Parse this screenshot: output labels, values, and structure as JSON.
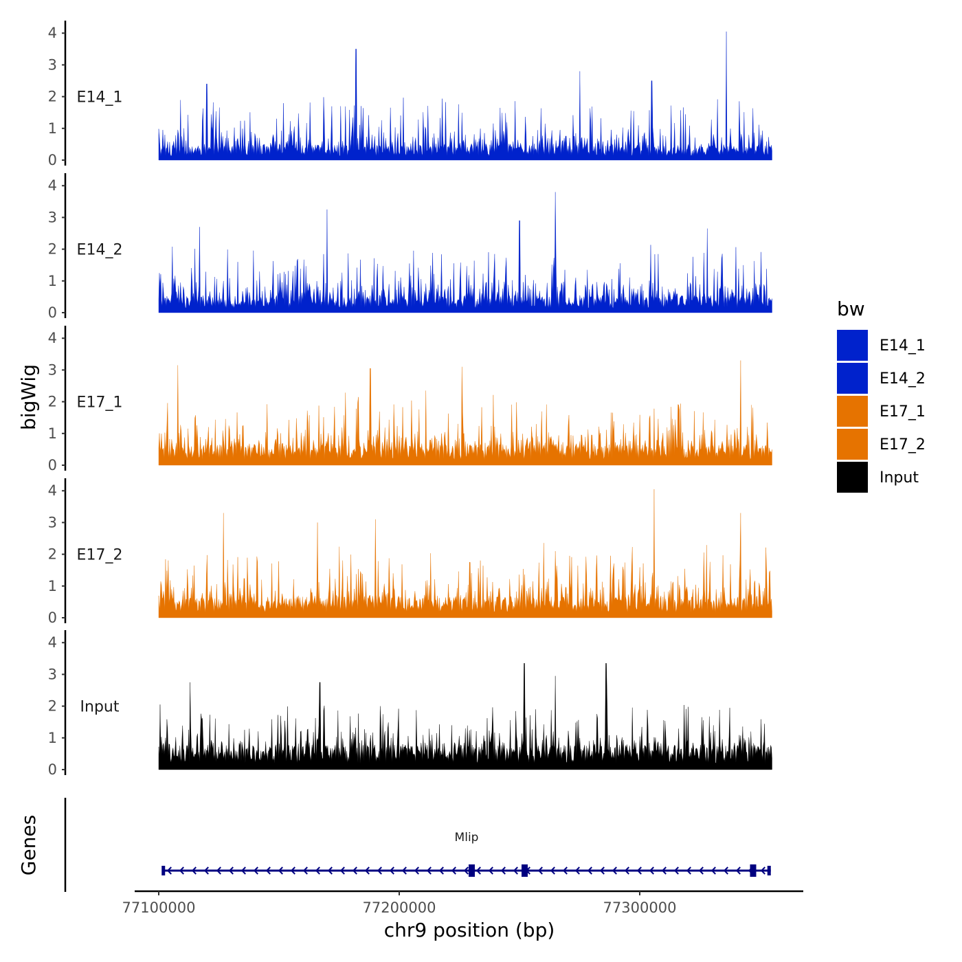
{
  "chart_data": {
    "type": "area",
    "ylabel": "bigWig",
    "xlabel": "chr9 position (bp)",
    "genes_label": "Genes",
    "x_range": [
      77100000,
      77355000
    ],
    "x_axis_limits": [
      77090000,
      77368000
    ],
    "x_ticks": [
      77100000,
      77200000,
      77300000
    ],
    "x_tick_labels": [
      "77100000",
      "77200000",
      "77300000"
    ],
    "ylim": [
      0,
      4.2
    ],
    "y_ticks": [
      0,
      1,
      2,
      3,
      4
    ],
    "y_tick_labels": [
      "0",
      "1",
      "2",
      "3",
      "4"
    ],
    "tracks": [
      {
        "name": "E14_1",
        "color": "#0022CC",
        "baseline": 0.4,
        "spread": 1.3,
        "peaks": [
          {
            "x": 77182000,
            "y": 3.5
          },
          {
            "x": 77275000,
            "y": 2.8
          },
          {
            "x": 77336000,
            "y": 4.05
          },
          {
            "x": 77120000,
            "y": 2.4
          },
          {
            "x": 77305000,
            "y": 2.5
          }
        ]
      },
      {
        "name": "E14_2",
        "color": "#0022CC",
        "baseline": 0.45,
        "spread": 1.4,
        "peaks": [
          {
            "x": 77170000,
            "y": 3.25
          },
          {
            "x": 77265000,
            "y": 3.8
          },
          {
            "x": 77117000,
            "y": 2.7
          },
          {
            "x": 77250000,
            "y": 2.9
          },
          {
            "x": 77328000,
            "y": 2.65
          }
        ]
      },
      {
        "name": "E17_1",
        "color": "#E67300",
        "baseline": 0.55,
        "spread": 1.4,
        "peaks": [
          {
            "x": 77108000,
            "y": 3.15
          },
          {
            "x": 77188000,
            "y": 3.05
          },
          {
            "x": 77211000,
            "y": 2.35
          },
          {
            "x": 77226000,
            "y": 3.1
          },
          {
            "x": 77342000,
            "y": 3.3
          }
        ]
      },
      {
        "name": "E17_2",
        "color": "#E67300",
        "baseline": 0.55,
        "spread": 1.5,
        "peaks": [
          {
            "x": 77127000,
            "y": 3.3
          },
          {
            "x": 77166000,
            "y": 3.0
          },
          {
            "x": 77190000,
            "y": 3.1
          },
          {
            "x": 77306000,
            "y": 4.05
          },
          {
            "x": 77342000,
            "y": 3.3
          }
        ]
      },
      {
        "name": "Input",
        "color": "#000000",
        "baseline": 0.65,
        "spread": 1.3,
        "peaks": [
          {
            "x": 77252000,
            "y": 3.35
          },
          {
            "x": 77286000,
            "y": 3.35
          },
          {
            "x": 77265000,
            "y": 2.95
          },
          {
            "x": 77113000,
            "y": 2.75
          },
          {
            "x": 77167000,
            "y": 2.75
          }
        ]
      }
    ],
    "legend": {
      "title": "bw",
      "items": [
        {
          "label": "E14_1",
          "color": "#0022CC"
        },
        {
          "label": "E14_2",
          "color": "#0022CC"
        },
        {
          "label": "E17_1",
          "color": "#E67300"
        },
        {
          "label": "E17_2",
          "color": "#E67300"
        },
        {
          "label": "Input",
          "color": "#000000"
        }
      ]
    },
    "gene": {
      "name": "Mlip",
      "color": "#000080",
      "start": 77101500,
      "end": 77354500,
      "strand": "-",
      "exons": [
        77230000,
        77252000,
        77347000
      ]
    }
  }
}
